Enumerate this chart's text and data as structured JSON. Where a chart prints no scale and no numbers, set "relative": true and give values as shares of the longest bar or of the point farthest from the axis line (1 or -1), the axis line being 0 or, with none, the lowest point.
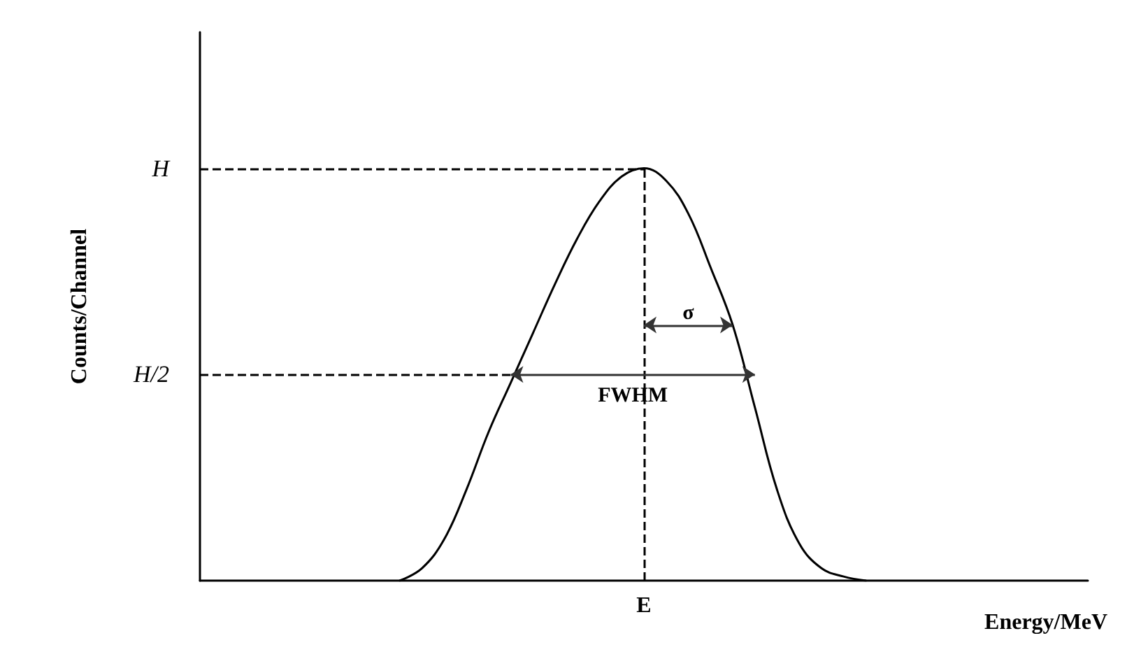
{
  "chart_data": {
    "type": "line",
    "relative": true,
    "xlabel": "Energy/MeV",
    "ylabel": "Counts/Channel",
    "categories": [
      null,
      null,
      null,
      null,
      null,
      null,
      null,
      null,
      null,
      null,
      null,
      null,
      null,
      null,
      null,
      null,
      null,
      null,
      null,
      null,
      null,
      null,
      null,
      null,
      null,
      null,
      null,
      null,
      null,
      null,
      null,
      null,
      null,
      null,
      null,
      null,
      null,
      null,
      null,
      null,
      null
    ],
    "series": [
      {
        "color": "#000000",
        "values": [
          null,
          null,
          null,
          null,
          null,
          null,
          null,
          null,
          null,
          0,
          0.03,
          0.1,
          0.22,
          0.36,
          0.48,
          0.6,
          0.72,
          0.83,
          0.92,
          0.98,
          1,
          0.97,
          0.89,
          0.76,
          0.62,
          0.42,
          0.22,
          0.09,
          0.03,
          0.01,
          0,
          null,
          null,
          null,
          null,
          null,
          null,
          null,
          null,
          null,
          null
        ]
      }
    ],
    "ref_lines": [
      {
        "axis": "y",
        "value": 1,
        "label": "H",
        "line_style": "dashed"
      },
      {
        "axis": "y",
        "value": 0.5,
        "label": "H/2",
        "line_style": "dashed"
      },
      {
        "axis": "x",
        "value": "E",
        "line_style": "dashed"
      }
    ],
    "annotations": [
      "σ",
      "FWHM"
    ],
    "marker": "none",
    "line_style": "solid",
    "grid": false
  }
}
